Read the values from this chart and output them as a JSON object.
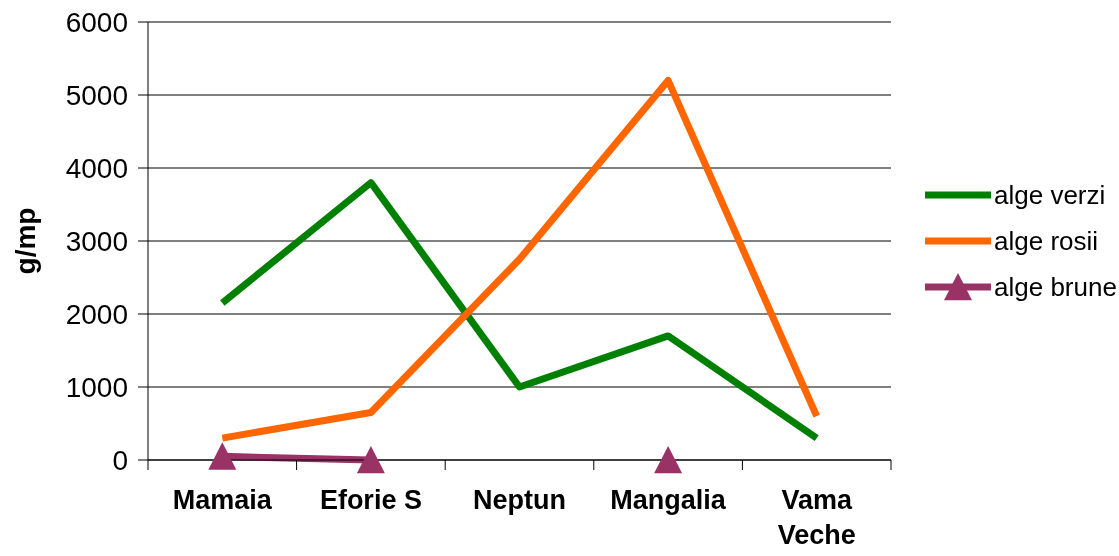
{
  "chart_data": {
    "type": "line",
    "ylabel": "g/mp",
    "categories": [
      "Mamaia",
      "Eforie S",
      "Neptun",
      "Mangalia",
      "Vama Veche"
    ],
    "series": [
      {
        "name": "alge verzi",
        "color": "#008000",
        "marker": "none",
        "values": [
          2150,
          3800,
          1000,
          1700,
          300
        ]
      },
      {
        "name": "alge rosii",
        "color": "#ff6600",
        "marker": "none",
        "values": [
          300,
          650,
          2750,
          5200,
          600
        ]
      },
      {
        "name": "alge brune",
        "color": "#993366",
        "marker": "triangle",
        "values": [
          50,
          0,
          null,
          0,
          null
        ]
      }
    ],
    "ylim": [
      0,
      6000
    ],
    "yticks": [
      0,
      1000,
      2000,
      3000,
      4000,
      5000,
      6000
    ],
    "grid": "y",
    "legend": "right"
  }
}
